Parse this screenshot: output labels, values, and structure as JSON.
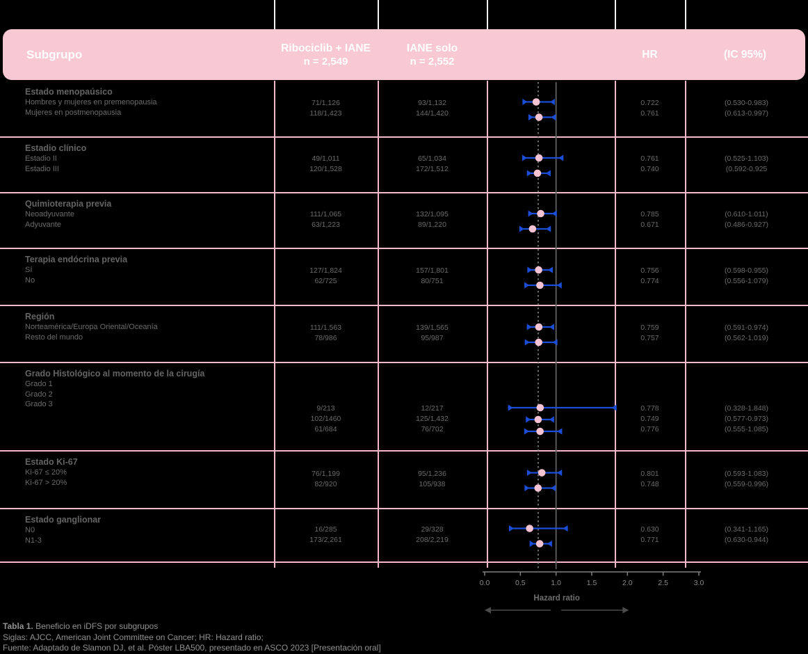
{
  "colors": {
    "header_pink": "#f8c8d3",
    "grid_pink": "#f5bac9",
    "ci_blue": "#1b4dd6",
    "marker_pink": "#f6c3d2",
    "axis_gray": "#7f7f7f",
    "arrow_gray": "#4c4c4c"
  },
  "header": {
    "subgroup": "Subgrupo",
    "col_rib": "Ribociclib + IANE",
    "col_rib_n": "n = 2,549",
    "col_iane": "IANE solo",
    "col_iane_n": "n = 2,552",
    "col_hr": "HR",
    "col_ci": "(IC 95%)"
  },
  "groups": [
    {
      "title": "Estado menopaúsico",
      "items": [
        {
          "label": "Hombres y mujeres en premenopausia",
          "rib": "71/1,126",
          "iane": "93/1,132",
          "hr": "0.722",
          "ci": "(0.530-0.983)"
        },
        {
          "label": "Mujeres en postmenopausia",
          "rib": "118/1,423",
          "iane": "144/1,420",
          "hr": "0.761",
          "ci": "(0.613-0.997)"
        }
      ]
    },
    {
      "title": "Estadio clínico",
      "items": [
        {
          "label": "Estadio II",
          "rib": "49/1,011",
          "iane": "65/1,034",
          "hr": "0.761",
          "ci": "(0.525-1.103)"
        },
        {
          "label": "Estadio III",
          "rib": "120/1,528",
          "iane": "172/1,512",
          "hr": "0.740",
          "ci": "(0.592-0.925"
        }
      ]
    },
    {
      "title": "Quimioterapia previa",
      "items": [
        {
          "label": "Neoadyuvante",
          "rib": "111/1,065",
          "iane": "132/1,095",
          "hr": "0.785",
          "ci": "(0.610-1.011)"
        },
        {
          "label": "Adyuvante",
          "rib": "63/1,223",
          "iane": "89/1,220",
          "hr": "0.671",
          "ci": "(0.486-0.927)"
        }
      ]
    },
    {
      "title": "Terapia endócrina previa",
      "items": [
        {
          "label": "Sí",
          "rib": "127/1,824",
          "iane": "157/1,801",
          "hr": "0.756",
          "ci": "(0.598-0.955)"
        },
        {
          "label": "No",
          "rib": "62/725",
          "iane": "80/751",
          "hr": "0.774",
          "ci": "(0.556-1.079)"
        }
      ]
    },
    {
      "title": "Región",
      "items": [
        {
          "label": "Norteamérica/Europa Oriental/Oceanía",
          "rib": "111/1,563",
          "iane": "139/1,565",
          "hr": "0.759",
          "ci": "(0.591-0.974)"
        },
        {
          "label": "Resto del mundo",
          "rib": "78/986",
          "iane": "95/987",
          "hr": "0.757",
          "ci": "(0.562-1.019)"
        }
      ]
    },
    {
      "title": "Grado Histológico al momento de la cirugía",
      "items": [
        {
          "label": "Grado 1",
          "rib": "9/213",
          "iane": "12/217",
          "hr": "0.778",
          "ci": "(0.328-1.848)"
        },
        {
          "label": "Grado 2",
          "rib": "102/1460",
          "iane": "125/1,432",
          "hr": "0.749",
          "ci": "(0.577-0.973)"
        },
        {
          "label": "Grado 3",
          "rib": "61/684",
          "iane": "76/702",
          "hr": "0.776",
          "ci": "(0.555-1.085)"
        }
      ]
    },
    {
      "title": "Estado Ki-67",
      "items": [
        {
          "label": "Ki-67 ≤ 20%",
          "rib": "76/1,199",
          "iane": "95/1,236",
          "hr": "0.801",
          "ci": "(0.593-1.083)"
        },
        {
          "label": "Ki-67 > 20%",
          "rib": "82/920",
          "iane": "105/938",
          "hr": "0.748",
          "ci": "(0.559-0.996)"
        }
      ]
    },
    {
      "title": "Estado ganglionar",
      "items": [
        {
          "label": "N0",
          "rib": "16/285",
          "iane": "29/328",
          "hr": "0.630",
          "ci": "(0.341-1.165)"
        },
        {
          "label": "N1-3",
          "rib": "173/2,261",
          "iane": "208/2,219",
          "hr": "0.771",
          "ci": "(0.630-0.944)"
        }
      ]
    }
  ],
  "chart_data": {
    "type": "scatter",
    "variant": "forest-plot",
    "xlabel": "Hazard ratio",
    "xlim": [
      0.0,
      3.0
    ],
    "x_ticks": [
      0.0,
      0.5,
      1.0,
      1.5,
      2.0,
      2.5,
      3.0
    ],
    "x_tick_labels": [
      "0.0",
      "0.5",
      "1.0",
      "1.5",
      "2.0",
      "2.5",
      "3.0"
    ],
    "reference_line": 1.0,
    "overall_dashed_line": 0.75,
    "points": [
      {
        "subgroup": "Hombres y mujeres en premenopausia",
        "hr": 0.722,
        "lo": 0.53,
        "hi": 0.983
      },
      {
        "subgroup": "Mujeres en postmenopausia",
        "hr": 0.761,
        "lo": 0.613,
        "hi": 0.997
      },
      {
        "subgroup": "Estadio II",
        "hr": 0.761,
        "lo": 0.525,
        "hi": 1.103
      },
      {
        "subgroup": "Estadio III",
        "hr": 0.74,
        "lo": 0.592,
        "hi": 0.925
      },
      {
        "subgroup": "Neoadyuvante",
        "hr": 0.785,
        "lo": 0.61,
        "hi": 1.011
      },
      {
        "subgroup": "Adyuvante",
        "hr": 0.671,
        "lo": 0.486,
        "hi": 0.927
      },
      {
        "subgroup": "Sí",
        "hr": 0.756,
        "lo": 0.598,
        "hi": 0.955
      },
      {
        "subgroup": "No",
        "hr": 0.774,
        "lo": 0.556,
        "hi": 1.079
      },
      {
        "subgroup": "Norteamérica/Europa Oriental/Oceanía",
        "hr": 0.759,
        "lo": 0.591,
        "hi": 0.974
      },
      {
        "subgroup": "Resto del mundo",
        "hr": 0.757,
        "lo": 0.562,
        "hi": 1.019
      },
      {
        "subgroup": "Grado 1",
        "hr": 0.778,
        "lo": 0.328,
        "hi": 1.848
      },
      {
        "subgroup": "Grado 2",
        "hr": 0.749,
        "lo": 0.577,
        "hi": 0.973
      },
      {
        "subgroup": "Grado 3",
        "hr": 0.776,
        "lo": 0.555,
        "hi": 1.085
      },
      {
        "subgroup": "Ki-67 ≤ 20%",
        "hr": 0.801,
        "lo": 0.593,
        "hi": 1.083
      },
      {
        "subgroup": "Ki-67 > 20%",
        "hr": 0.748,
        "lo": 0.559,
        "hi": 0.996
      },
      {
        "subgroup": "N0",
        "hr": 0.63,
        "lo": 0.341,
        "hi": 1.165
      },
      {
        "subgroup": "N1-3",
        "hr": 0.771,
        "lo": 0.63,
        "hi": 0.944
      }
    ]
  },
  "footer": {
    "title_bold": "Tabla 1.",
    "title_rest": " Beneficio en iDFS por subgrupos",
    "line2": "Siglas: AJCC, American Joint Committee on Cancer; HR: Hazard ratio;",
    "line3": "Fuente: Adaptado de Slamon DJ, et al. Póster LBA500, presentado en ASCO 2023 [Presentación oral]"
  }
}
